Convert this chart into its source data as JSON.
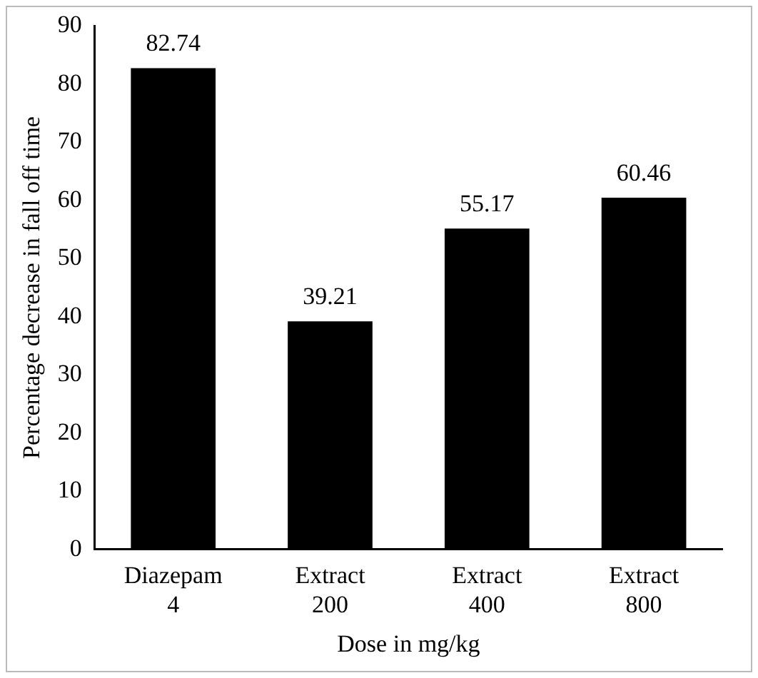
{
  "chart_data": {
    "type": "bar",
    "xlabel": "Dose in mg/kg",
    "ylabel": "Percentage decrease in fall off time",
    "categories": [
      "Diazepam 4",
      "Extract 200",
      "Extract 400",
      "Extract 800"
    ],
    "values": [
      82.74,
      39.21,
      55.17,
      60.46
    ],
    "color": "#000000",
    "ylim": [
      0,
      90
    ],
    "yticks": [
      0,
      10,
      20,
      30,
      40,
      50,
      60,
      70,
      80,
      90
    ],
    "grid": false,
    "legend": false,
    "data_labels": true
  }
}
